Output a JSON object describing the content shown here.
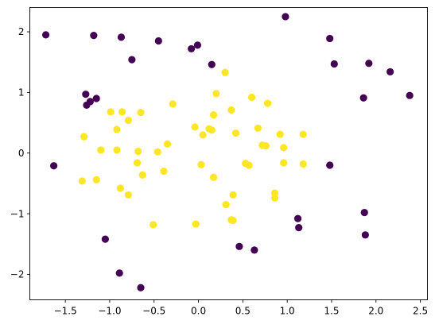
{
  "chart_data": {
    "type": "scatter",
    "title": "",
    "xlabel": "",
    "ylabel": "",
    "xlim": [
      -1.9,
      2.58
    ],
    "ylim": [
      -2.42,
      2.4
    ],
    "xticks": [
      -1.5,
      -1.0,
      -0.5,
      0.0,
      0.5,
      1.0,
      1.5,
      2.0,
      2.5
    ],
    "xtick_labels": [
      "−1.5",
      "−1.0",
      "−0.5",
      "0.0",
      "0.5",
      "1.0",
      "1.5",
      "2.0",
      "2.5"
    ],
    "yticks": [
      -2,
      -1,
      0,
      1,
      2
    ],
    "ytick_labels": [
      "−2",
      "−1",
      "0",
      "1",
      "2"
    ],
    "grid": false,
    "series": [
      {
        "color": "#440154",
        "points": [
          [
            -1.72,
            1.95
          ],
          [
            -1.18,
            1.94
          ],
          [
            -0.87,
            1.91
          ],
          [
            -0.45,
            1.85
          ],
          [
            -0.75,
            1.54
          ],
          [
            -0.08,
            1.72
          ],
          [
            -0.01,
            1.78
          ],
          [
            0.15,
            1.46
          ],
          [
            0.98,
            2.25
          ],
          [
            1.48,
            1.89
          ],
          [
            1.53,
            1.47
          ],
          [
            1.92,
            1.48
          ],
          [
            2.16,
            1.34
          ],
          [
            1.86,
            0.91
          ],
          [
            2.38,
            0.95
          ],
          [
            -1.27,
            0.97
          ],
          [
            -1.26,
            0.79
          ],
          [
            -1.22,
            0.85
          ],
          [
            -1.15,
            0.9
          ],
          [
            -1.63,
            -0.21
          ],
          [
            1.48,
            -0.2
          ],
          [
            1.12,
            -1.08
          ],
          [
            1.13,
            -1.23
          ],
          [
            1.87,
            -0.98
          ],
          [
            1.88,
            -1.35
          ],
          [
            0.46,
            -1.54
          ],
          [
            0.63,
            -1.6
          ],
          [
            -1.05,
            -1.42
          ],
          [
            -0.89,
            -1.98
          ],
          [
            -0.65,
            -2.22
          ]
        ]
      },
      {
        "color": "#fde725",
        "points": [
          [
            0.3,
            1.33
          ],
          [
            0.2,
            0.98
          ],
          [
            0.6,
            0.92
          ],
          [
            0.78,
            0.82
          ],
          [
            0.37,
            0.71
          ],
          [
            0.17,
            0.63
          ],
          [
            -0.04,
            0.43
          ],
          [
            0.12,
            0.4
          ],
          [
            0.15,
            0.38
          ],
          [
            0.05,
            0.3
          ],
          [
            0.42,
            0.33
          ],
          [
            0.67,
            0.41
          ],
          [
            0.72,
            0.13
          ],
          [
            0.76,
            0.12
          ],
          [
            0.92,
            0.31
          ],
          [
            0.96,
            0.09
          ],
          [
            1.18,
            0.31
          ],
          [
            0.96,
            -0.16
          ],
          [
            1.18,
            -0.18
          ],
          [
            0.53,
            -0.17
          ],
          [
            0.57,
            -0.2
          ],
          [
            0.03,
            -0.19
          ],
          [
            0.17,
            -0.4
          ],
          [
            0.39,
            -0.69
          ],
          [
            0.31,
            -0.85
          ],
          [
            0.37,
            -1.1
          ],
          [
            0.39,
            -1.11
          ],
          [
            0.86,
            -0.66
          ],
          [
            0.86,
            -0.74
          ],
          [
            -0.03,
            -1.17
          ],
          [
            -0.51,
            -1.18
          ],
          [
            -0.29,
            0.81
          ],
          [
            -0.86,
            0.68
          ],
          [
            -0.79,
            0.54
          ],
          [
            -0.65,
            0.67
          ],
          [
            -0.99,
            0.68
          ],
          [
            -0.92,
            0.39
          ],
          [
            -0.35,
            0.15
          ],
          [
            -1.29,
            0.27
          ],
          [
            -1.1,
            0.05
          ],
          [
            -0.92,
            0.05
          ],
          [
            -0.68,
            0.03
          ],
          [
            -0.46,
            0.02
          ],
          [
            -0.69,
            -0.16
          ],
          [
            -0.63,
            -0.36
          ],
          [
            -0.39,
            -0.3
          ],
          [
            -1.15,
            -0.44
          ],
          [
            -1.31,
            -0.46
          ],
          [
            -0.88,
            -0.58
          ],
          [
            -0.79,
            -0.69
          ]
        ]
      }
    ]
  }
}
